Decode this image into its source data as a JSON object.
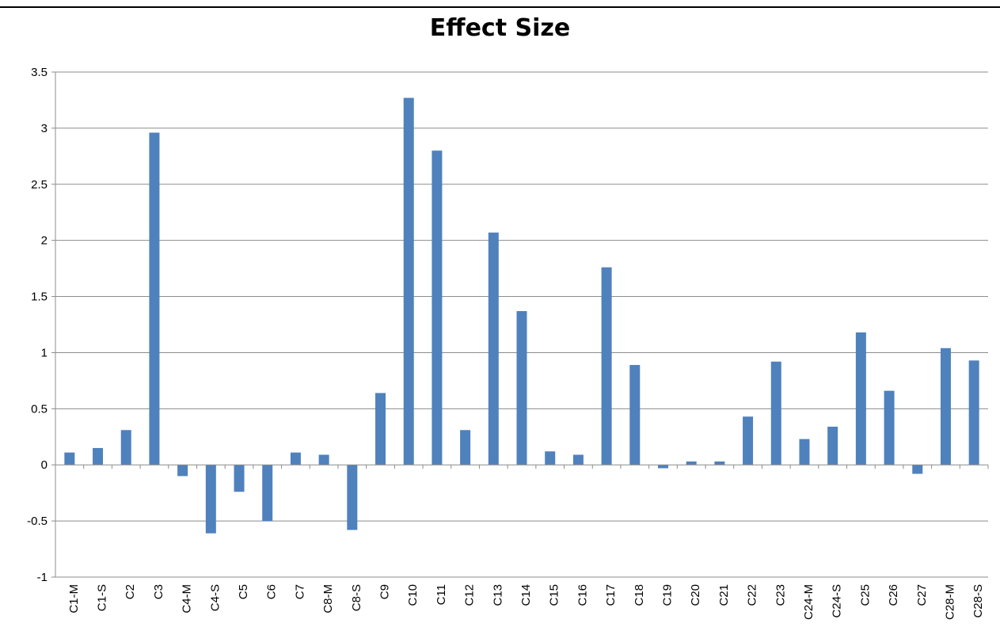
{
  "chart_data": {
    "type": "bar",
    "title": "Effect Size",
    "xlabel": "",
    "ylabel": "",
    "ylim": [
      -1,
      3.5
    ],
    "yticks": [
      "-1",
      "-0.5",
      "0",
      "0.5",
      "1",
      "1.5",
      "2",
      "2.5",
      "3",
      "3.5"
    ],
    "grid": true,
    "legend": "none",
    "bar_color": "#4F81BD",
    "categories": [
      "C1-M",
      "C1-S",
      "C2",
      "C3",
      "C4-M",
      "C4-S",
      "C5",
      "C6",
      "C7",
      "C8-M",
      "C8-S",
      "C9",
      "C10",
      "C11",
      "C12",
      "C13",
      "C14",
      "C15",
      "C16",
      "C17",
      "C18",
      "C19",
      "C20",
      "C21",
      "C22",
      "C23",
      "C24-M",
      "C24-S",
      "C25",
      "C26",
      "C27",
      "C28-M",
      "C28-S"
    ],
    "values": [
      0.11,
      0.15,
      0.31,
      2.96,
      -0.1,
      -0.61,
      -0.24,
      -0.5,
      0.11,
      0.09,
      -0.58,
      0.64,
      3.27,
      2.8,
      0.31,
      2.07,
      1.37,
      0.12,
      0.09,
      1.76,
      0.89,
      -0.03,
      0.03,
      0.03,
      0.43,
      0.92,
      0.23,
      0.34,
      1.18,
      0.66,
      -0.08,
      1.04,
      0.93
    ]
  }
}
